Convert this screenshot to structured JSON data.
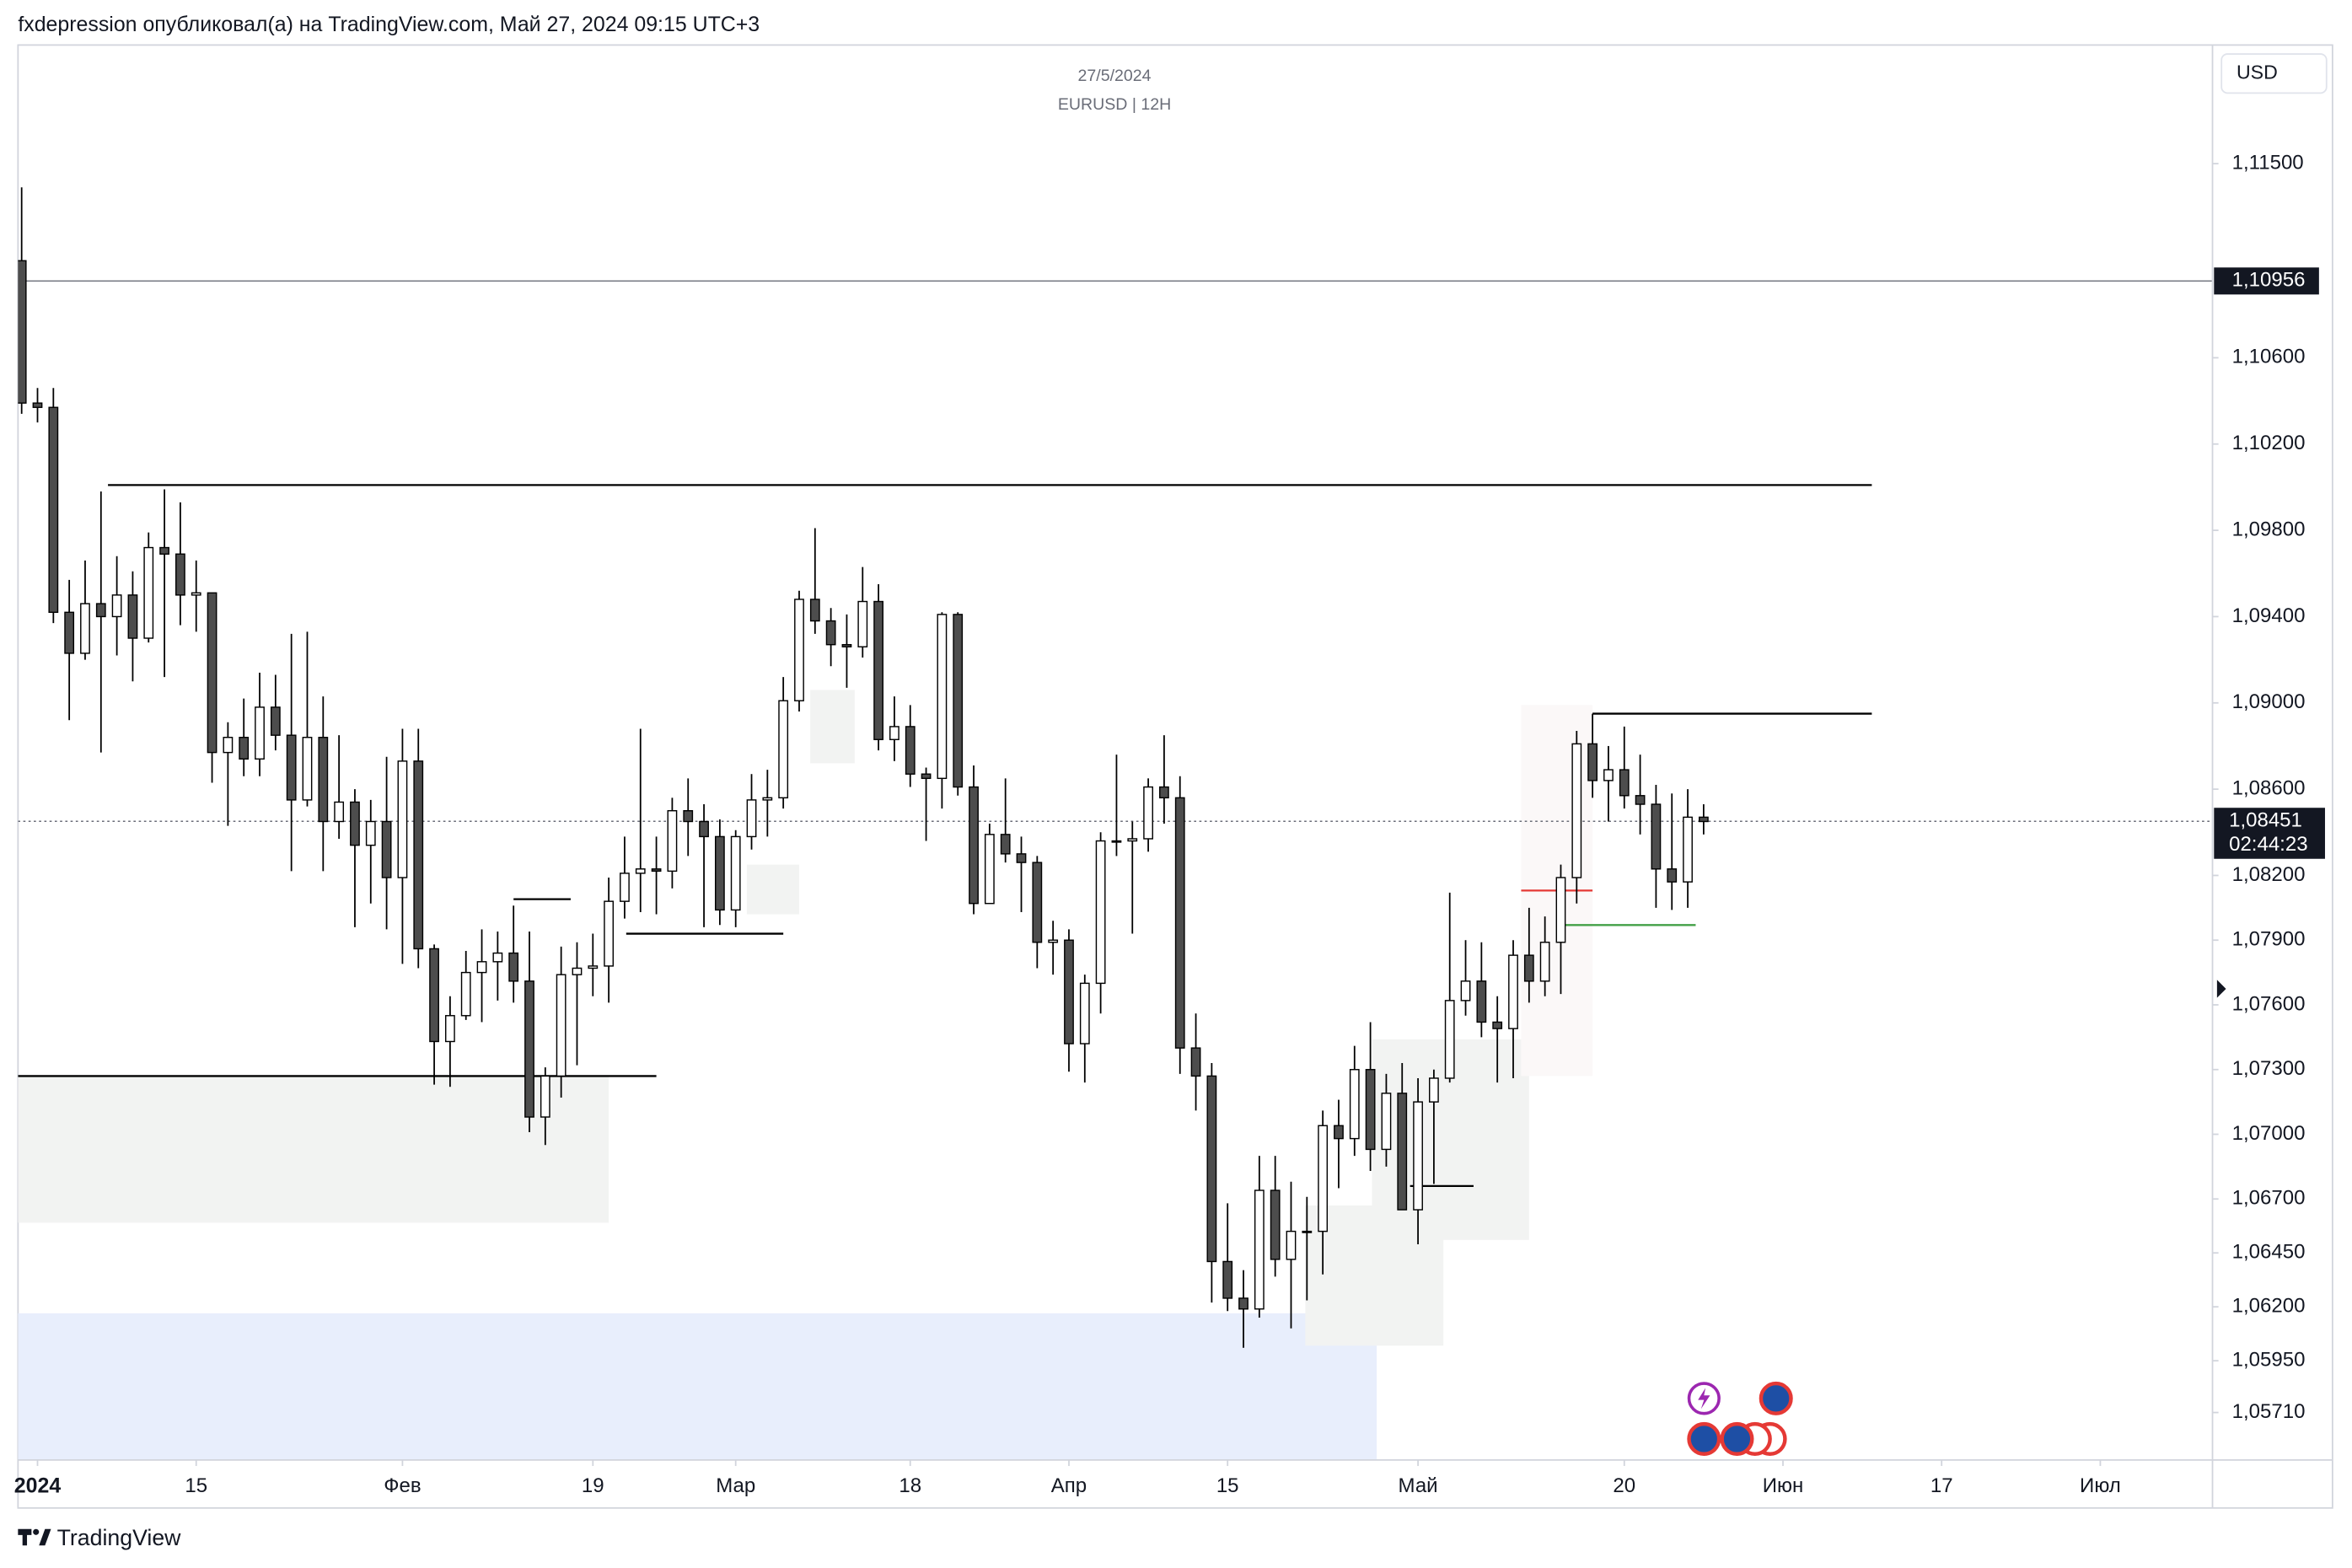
{
  "header": "fxdepression опубликовал(а) на TradingView.com, Май 27, 2024 09:15 UTC+3",
  "footer": {
    "brand": "TradingView"
  },
  "chart_data": {
    "type": "candlestick",
    "title": "27/5/2024",
    "subtitle": "EURUSD | 12H",
    "currency": "USD",
    "up_color": "#ffffff",
    "down_color": "#4d4d4d",
    "wick_color": "#000000",
    "xlim": [
      -1.23,
      137.07
    ],
    "ylim": [
      1.0549,
      1.1205
    ],
    "xticks": [
      {
        "value": 0,
        "label": "2024"
      },
      {
        "value": 10,
        "label": "15"
      },
      {
        "value": 23,
        "label": "Фев"
      },
      {
        "value": 35,
        "label": "19"
      },
      {
        "value": 44,
        "label": "Мар"
      },
      {
        "value": 55,
        "label": "18"
      },
      {
        "value": 65,
        "label": "Апр"
      },
      {
        "value": 75,
        "label": "15"
      },
      {
        "value": 87,
        "label": "Май"
      },
      {
        "value": 100,
        "label": "20"
      },
      {
        "value": 110,
        "label": "Июн"
      },
      {
        "value": 120,
        "label": "17"
      },
      {
        "value": 130,
        "label": "Июл"
      }
    ],
    "yticks": [
      {
        "value": 1.115,
        "label": "1,11500"
      },
      {
        "value": 1.106,
        "label": "1,10600"
      },
      {
        "value": 1.102,
        "label": "1,10200"
      },
      {
        "value": 1.098,
        "label": "1,09800"
      },
      {
        "value": 1.094,
        "label": "1,09400"
      },
      {
        "value": 1.09,
        "label": "1,09000"
      },
      {
        "value": 1.086,
        "label": "1,08600"
      },
      {
        "value": 1.082,
        "label": "1,08200"
      },
      {
        "value": 1.079,
        "label": "1,07900"
      },
      {
        "value": 1.076,
        "label": "1,07600"
      },
      {
        "value": 1.073,
        "label": "1,07300"
      },
      {
        "value": 1.07,
        "label": "1,07000"
      },
      {
        "value": 1.067,
        "label": "1,06700"
      },
      {
        "value": 1.0645,
        "label": "1,06450"
      },
      {
        "value": 1.062,
        "label": "1,06200"
      },
      {
        "value": 1.0595,
        "label": "1,05950"
      },
      {
        "value": 1.0571,
        "label": "1,05710"
      }
    ],
    "marked_price": {
      "value": 1.10956,
      "label": "1,10956"
    },
    "last_price": {
      "value": 1.08451,
      "label": "1,08451"
    },
    "countdown": "02:44:23",
    "x": [
      -1,
      0,
      1,
      2,
      3,
      4,
      5,
      6,
      7,
      8,
      9,
      10,
      11,
      12,
      13,
      14,
      15,
      16,
      17,
      18,
      19,
      20,
      21,
      22,
      23,
      24,
      25,
      26,
      27,
      28,
      29,
      30,
      31,
      32,
      33,
      34,
      35,
      36,
      37,
      38,
      39,
      40,
      41,
      42,
      43,
      44,
      45,
      46,
      47,
      48,
      49,
      50,
      51,
      52,
      53,
      54,
      55,
      56,
      57,
      58,
      59,
      60,
      61,
      62,
      63,
      64,
      65,
      66,
      67,
      68,
      69,
      70,
      71,
      72,
      73,
      74,
      75,
      76,
      77,
      78,
      79,
      80,
      81,
      82,
      83,
      84,
      85,
      86,
      87,
      88,
      89,
      90,
      91,
      92,
      93,
      94,
      95,
      96,
      97,
      98,
      99,
      100,
      101,
      102,
      103,
      104,
      105
    ],
    "open": [
      1.1105,
      1.1039,
      1.1037,
      1.0942,
      1.0923,
      1.0946,
      1.094,
      1.095,
      1.093,
      1.0972,
      1.0969,
      1.095,
      1.0951,
      1.0877,
      1.0884,
      1.0874,
      1.0898,
      1.0885,
      1.0855,
      1.0884,
      1.0845,
      1.0854,
      1.0834,
      1.0845,
      1.0819,
      1.0873,
      1.0786,
      1.0743,
      1.0755,
      1.0775,
      1.078,
      1.0784,
      1.0771,
      1.0708,
      1.0727,
      1.0774,
      1.0777,
      1.0778,
      1.0808,
      1.0821,
      1.0823,
      1.0822,
      1.085,
      1.0845,
      1.0838,
      1.0804,
      1.0838,
      1.0855,
      1.0856,
      1.0901,
      1.0948,
      1.0938,
      1.0927,
      1.0926,
      1.0947,
      1.0883,
      1.0889,
      1.0867,
      1.0865,
      1.0941,
      1.0861,
      1.0807,
      1.0839,
      1.083,
      1.0826,
      1.0789,
      1.079,
      1.0742,
      1.077,
      1.0836,
      1.0836,
      1.0837,
      1.0861,
      1.0856,
      1.074,
      1.0727,
      1.0641,
      1.0624,
      1.0619,
      1.0674,
      1.0642,
      1.0655,
      1.0655,
      1.0704,
      1.0698,
      1.073,
      1.0693,
      1.0719,
      1.0665,
      1.0715,
      1.0726,
      1.0762,
      1.0771,
      1.0752,
      1.0749,
      1.0783,
      1.0771,
      1.0789,
      1.0819,
      1.0881,
      1.0864,
      1.0869,
      1.0857,
      1.0853,
      1.0823,
      1.0817,
      1.0847
    ],
    "high": [
      1.1139,
      1.1046,
      1.1046,
      1.0957,
      1.0966,
      1.0998,
      1.0968,
      1.0961,
      1.0979,
      1.0999,
      1.0993,
      1.0966,
      1.0951,
      1.0891,
      1.0902,
      1.0914,
      1.0913,
      1.0932,
      1.0933,
      1.0903,
      1.0885,
      1.086,
      1.0855,
      1.0875,
      1.0888,
      1.0888,
      1.0788,
      1.0764,
      1.0785,
      1.0795,
      1.0794,
      1.0806,
      1.0794,
      1.0731,
      1.0787,
      1.0789,
      1.0793,
      1.0819,
      1.0838,
      1.0888,
      1.0838,
      1.0856,
      1.0865,
      1.0853,
      1.0846,
      1.0841,
      1.0867,
      1.0869,
      1.0912,
      1.0952,
      1.0981,
      1.0944,
      1.0941,
      1.0963,
      1.0955,
      1.0903,
      1.0899,
      1.087,
      1.0942,
      1.0942,
      1.0871,
      1.0844,
      1.0865,
      1.0838,
      1.0829,
      1.0799,
      1.0795,
      1.0774,
      1.084,
      1.0876,
      1.0845,
      1.0865,
      1.0885,
      1.0866,
      1.0756,
      1.0733,
      1.0668,
      1.0637,
      1.069,
      1.069,
      1.0678,
      1.0671,
      1.0711,
      1.0716,
      1.0741,
      1.0752,
      1.0728,
      1.0733,
      1.0726,
      1.073,
      1.0812,
      1.079,
      1.0789,
      1.0764,
      1.079,
      1.0805,
      1.0801,
      1.0825,
      1.0887,
      1.0895,
      1.088,
      1.0889,
      1.0876,
      1.0862,
      1.0858,
      1.086,
      1.0853
    ],
    "low": [
      1.1034,
      1.103,
      1.0937,
      1.0892,
      1.092,
      1.0877,
      1.0922,
      1.091,
      1.0928,
      1.0912,
      1.0936,
      1.0933,
      1.0863,
      1.0843,
      1.0866,
      1.0866,
      1.0878,
      1.0822,
      1.0852,
      1.0822,
      1.0837,
      1.0796,
      1.0807,
      1.0795,
      1.0779,
      1.0777,
      1.0723,
      1.0722,
      1.0753,
      1.0752,
      1.0762,
      1.0761,
      1.0701,
      1.0695,
      1.0717,
      1.0732,
      1.0764,
      1.0761,
      1.08,
      1.0803,
      1.0802,
      1.0814,
      1.0829,
      1.0796,
      1.0797,
      1.0796,
      1.0832,
      1.0838,
      1.0851,
      1.0896,
      1.0932,
      1.0917,
      1.0907,
      1.0921,
      1.0878,
      1.0873,
      1.0861,
      1.0836,
      1.0851,
      1.0857,
      1.0802,
      1.0807,
      1.0826,
      1.0803,
      1.0777,
      1.0774,
      1.0729,
      1.0724,
      1.0756,
      1.0829,
      1.0793,
      1.0831,
      1.0844,
      1.0728,
      1.0711,
      1.0622,
      1.0618,
      1.0601,
      1.0615,
      1.0634,
      1.061,
      1.0623,
      1.0635,
      1.0675,
      1.069,
      1.0683,
      1.0685,
      1.0665,
      1.0649,
      1.0677,
      1.0724,
      1.0755,
      1.0745,
      1.0724,
      1.0726,
      1.0761,
      1.0764,
      1.0765,
      1.0807,
      1.0856,
      1.0845,
      1.0851,
      1.0839,
      1.0805,
      1.0804,
      1.0805,
      1.0839
    ],
    "close": [
      1.1039,
      1.1037,
      1.0942,
      1.0923,
      1.0946,
      1.094,
      1.095,
      1.093,
      1.0972,
      1.0969,
      1.095,
      1.0951,
      1.0877,
      1.0884,
      1.0874,
      1.0898,
      1.0885,
      1.0855,
      1.0884,
      1.0845,
      1.0854,
      1.0834,
      1.0845,
      1.0819,
      1.0873,
      1.0786,
      1.0743,
      1.0755,
      1.0775,
      1.078,
      1.0784,
      1.0771,
      1.0708,
      1.0727,
      1.0774,
      1.0777,
      1.0778,
      1.0808,
      1.0821,
      1.0823,
      1.0822,
      1.085,
      1.0845,
      1.0838,
      1.0804,
      1.0838,
      1.0855,
      1.0856,
      1.0901,
      1.0948,
      1.0938,
      1.0927,
      1.0926,
      1.0947,
      1.0883,
      1.0889,
      1.0867,
      1.0865,
      1.0941,
      1.0861,
      1.0807,
      1.0839,
      1.083,
      1.0826,
      1.0789,
      1.079,
      1.0742,
      1.077,
      1.0836,
      1.0836,
      1.0837,
      1.0861,
      1.0856,
      1.074,
      1.0727,
      1.0641,
      1.0624,
      1.0619,
      1.0674,
      1.0642,
      1.0655,
      1.0655,
      1.0704,
      1.0698,
      1.073,
      1.0693,
      1.0719,
      1.0665,
      1.0715,
      1.0726,
      1.0762,
      1.0771,
      1.0752,
      1.0749,
      1.0783,
      1.0771,
      1.0789,
      1.0819,
      1.0881,
      1.0864,
      1.0869,
      1.0857,
      1.0853,
      1.0823,
      1.0817,
      1.0847,
      1.0845
    ],
    "zones": [
      {
        "x": [
          -1.23,
          36
        ],
        "y": [
          1.0659,
          1.0727
        ],
        "color": "#f2f3f2"
      },
      {
        "x": [
          -1.23,
          84.4
        ],
        "y": [
          1.0549,
          1.0617
        ],
        "color": "#e8eefc"
      },
      {
        "x": [
          48.7,
          51.5
        ],
        "y": [
          1.0872,
          1.0906
        ],
        "color": "#f2f3f2"
      },
      {
        "x": [
          44.7,
          48.0
        ],
        "y": [
          1.0802,
          1.0825
        ],
        "color": "#f2f3f2"
      },
      {
        "x": [
          84.1,
          94.0
        ],
        "y": [
          1.0651,
          1.0744
        ],
        "color": "#f2f3f2"
      },
      {
        "x": [
          79.9,
          88.6
        ],
        "y": [
          1.0602,
          1.0667
        ],
        "color": "#f2f3f2"
      },
      {
        "x": [
          93.5,
          98.0
        ],
        "y": [
          1.0727,
          1.0899
        ],
        "color": "#fbf8f8"
      }
    ],
    "levels": [
      {
        "value": 1.1001,
        "x": [
          4.44,
          115.6
        ],
        "color": "#000000"
      },
      {
        "value": 1.0727,
        "x": [
          -1.23,
          39.0
        ],
        "color": "#000000"
      },
      {
        "value": 1.0895,
        "x": [
          98.0,
          115.6
        ],
        "color": "#000000"
      },
      {
        "value": 1.0809,
        "x": [
          30.0,
          33.6
        ],
        "color": "#000000"
      },
      {
        "value": 1.0793,
        "x": [
          37.1,
          47.0
        ],
        "color": "#000000"
      },
      {
        "value": 1.0676,
        "x": [
          86.5,
          90.5
        ],
        "color": "#000000"
      },
      {
        "value": 1.0813,
        "x": [
          93.5,
          98.0
        ],
        "color": "#e53935"
      },
      {
        "value": 1.0797,
        "x": [
          95.9,
          104.5
        ],
        "color": "#43a047"
      }
    ]
  }
}
